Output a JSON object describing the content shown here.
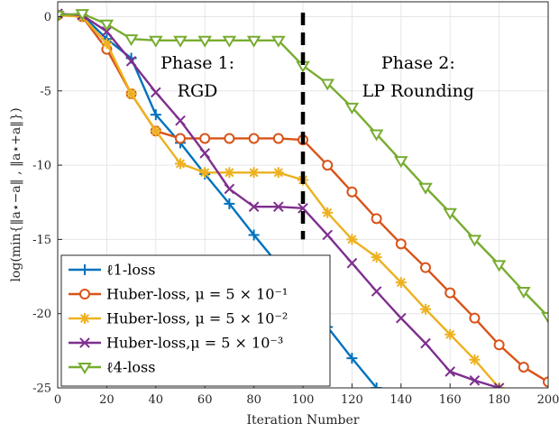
{
  "chart_data": {
    "type": "line",
    "title": "",
    "xlabel": "Iteration Number",
    "ylabel": "log(min{‖a⋆−a‖ , ‖a⋆+a‖})",
    "xlim": [
      0,
      200
    ],
    "ylim": [
      -25,
      1
    ],
    "xticks": [
      "0",
      "20",
      "40",
      "60",
      "80",
      "100",
      "120",
      "140",
      "160",
      "180",
      "200"
    ],
    "yticks": [
      "0",
      "-5",
      "-10",
      "-15",
      "-20",
      "-25"
    ],
    "grid": true,
    "legend_position": "bottom-left",
    "annotations": [
      {
        "lines": [
          "Phase 1:",
          "RGD"
        ],
        "x": 57,
        "y": -3.5
      },
      {
        "lines": [
          "Phase 2:",
          "LP Rounding"
        ],
        "x": 147,
        "y": -3.5
      }
    ],
    "phase_divider_x": 100,
    "series": [
      {
        "name": "ℓ1-loss",
        "color": "#0072BD",
        "marker": "plus",
        "x": [
          0,
          10,
          20,
          30,
          40,
          50,
          60,
          70,
          80,
          90,
          100,
          110,
          120,
          130
        ],
        "y": [
          0.1,
          0.1,
          -1.5,
          -2.8,
          -6.6,
          -8.5,
          -10.6,
          -12.6,
          -14.7,
          -16.7,
          -18.8,
          -20.9,
          -23.0,
          -25.0
        ]
      },
      {
        "name": "Huber-loss, μ = 5 × 10⁻¹",
        "color": "#D95319",
        "marker": "circle",
        "x": [
          0,
          10,
          20,
          30,
          40,
          50,
          60,
          70,
          80,
          90,
          100,
          110,
          120,
          130,
          140,
          150,
          160,
          170,
          180,
          190,
          200
        ],
        "y": [
          0.1,
          0,
          -2.2,
          -5.2,
          -7.7,
          -8.2,
          -8.2,
          -8.2,
          -8.2,
          -8.2,
          -8.3,
          -10.0,
          -11.8,
          -13.6,
          -15.3,
          -16.9,
          -18.6,
          -20.3,
          -22.1,
          -23.6,
          -24.6
        ]
      },
      {
        "name": "Huber-loss, μ = 5 × 10⁻²",
        "color": "#EDB120",
        "marker": "asterisk",
        "x": [
          0,
          10,
          20,
          30,
          40,
          50,
          60,
          70,
          80,
          90,
          100,
          110,
          120,
          130,
          140,
          150,
          160,
          170,
          180
        ],
        "y": [
          0.1,
          0,
          -1.8,
          -5.2,
          -7.7,
          -9.9,
          -10.5,
          -10.5,
          -10.5,
          -10.5,
          -11.0,
          -13.2,
          -15.0,
          -16.2,
          -17.9,
          -19.7,
          -21.4,
          -23.1,
          -25.0
        ]
      },
      {
        "name": "Huber-loss,μ = 5 × 10⁻³",
        "color": "#7E2F8E",
        "marker": "x",
        "x": [
          0,
          10,
          20,
          30,
          40,
          50,
          60,
          70,
          80,
          90,
          100,
          110,
          120,
          130,
          140,
          150,
          160,
          170,
          180
        ],
        "y": [
          0.2,
          0.1,
          -1.0,
          -3.0,
          -5.1,
          -7.0,
          -9.2,
          -11.6,
          -12.8,
          -12.8,
          -12.9,
          -14.7,
          -16.6,
          -18.5,
          -20.3,
          -22.0,
          -23.9,
          -24.5,
          -25.0
        ]
      },
      {
        "name": "ℓ4-loss",
        "color": "#77AC30",
        "marker": "triangle-down",
        "x": [
          0,
          10,
          20,
          30,
          40,
          50,
          60,
          70,
          80,
          90,
          100,
          110,
          120,
          130,
          140,
          150,
          160,
          170,
          180,
          190,
          200
        ],
        "y": [
          0.1,
          0.2,
          -0.5,
          -1.5,
          -1.6,
          -1.6,
          -1.6,
          -1.6,
          -1.6,
          -1.6,
          -3.3,
          -4.5,
          -6.1,
          -7.9,
          -9.7,
          -11.5,
          -13.2,
          -15.0,
          -16.7,
          -18.5,
          -20.2
        ]
      }
    ]
  }
}
